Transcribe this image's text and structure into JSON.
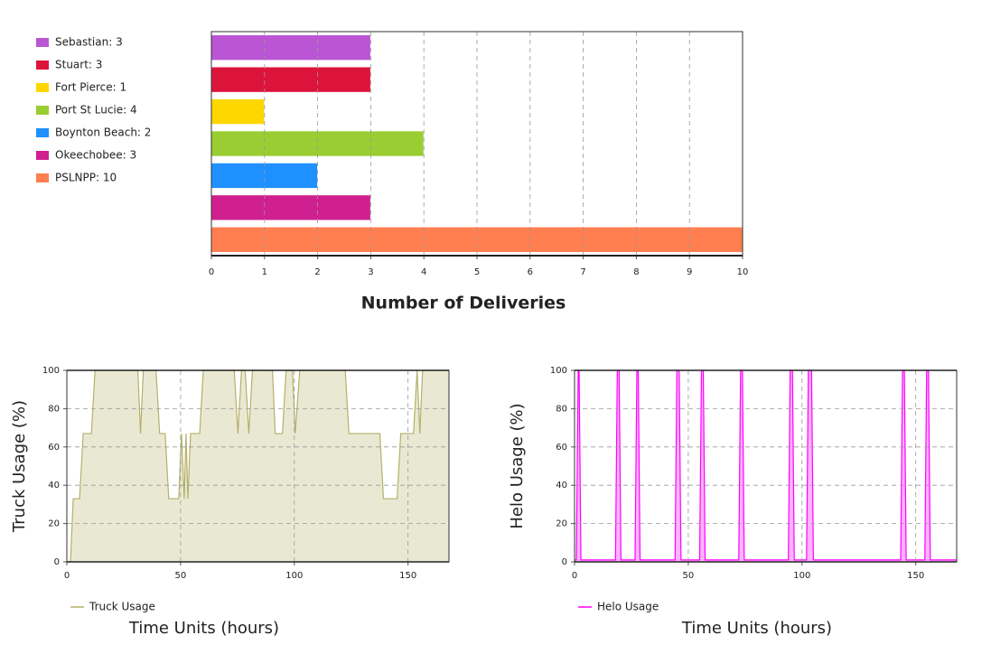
{
  "chart_data": [
    {
      "type": "bar",
      "orientation": "horizontal",
      "categories": [
        "Sebastian: 3",
        "Stuart: 3",
        "Fort Pierce: 1",
        "Port St Lucie: 4",
        "Boynton Beach: 2",
        "Okeechobee: 3",
        "PSLNPP: 10"
      ],
      "values": [
        3,
        3,
        1,
        4,
        2,
        3,
        10
      ],
      "colors": [
        "#ba55d3",
        "#dc143c",
        "#ffd700",
        "#9acd32",
        "#1e90ff",
        "#d0208f",
        "#ff7f50"
      ],
      "xlim": [
        0,
        10
      ],
      "xticks": [
        0,
        1,
        2,
        3,
        4,
        5,
        6,
        7,
        8,
        9,
        10
      ],
      "xlabel": "Number of Deliveries",
      "grid": true
    },
    {
      "type": "area",
      "x": [
        0,
        1.6,
        2.8,
        5.6,
        7.2,
        10.8,
        12.4,
        31.2,
        32.4,
        33.6,
        39.2,
        40.8,
        43.2,
        44.8,
        49.2,
        50.4,
        51.6,
        52.4,
        53.2,
        54.4,
        58.4,
        60,
        73.6,
        75.2,
        76.8,
        78.4,
        80,
        81.6,
        90.4,
        91.6,
        94.8,
        96.4,
        99.2,
        100.4,
        102.4,
        122.4,
        124,
        137.6,
        139.2,
        145.2,
        146.8,
        152.4,
        154,
        155.2,
        156.4,
        168
      ],
      "series": [
        {
          "name": "Truck Usage",
          "color": "#b5b06a",
          "fill": "#e9e9d3",
          "values": [
            0,
            0,
            33,
            33,
            67,
            67,
            100,
            100,
            67,
            100,
            100,
            67,
            67,
            33,
            33,
            67,
            33,
            67,
            33,
            67,
            67,
            100,
            100,
            67,
            100,
            100,
            67,
            100,
            100,
            67,
            67,
            100,
            100,
            67,
            100,
            100,
            67,
            67,
            33,
            33,
            67,
            67,
            100,
            67,
            100,
            100
          ]
        }
      ],
      "xlim": [
        0,
        168
      ],
      "xticks": [
        0,
        50,
        100,
        150
      ],
      "ylim": [
        0,
        100
      ],
      "yticks": [
        0,
        20,
        40,
        60,
        80,
        100
      ],
      "xlabel": "Time Units (hours)",
      "ylabel": "Truck Usage (%)",
      "grid": true
    },
    {
      "type": "area",
      "x": [
        0,
        0.8,
        1.6,
        2,
        2.8,
        18,
        18.8,
        19.6,
        20.4,
        26.6,
        27.4,
        28,
        28.8,
        44.2,
        45,
        46,
        46.8,
        55,
        55.8,
        56.6,
        57.4,
        72.2,
        73,
        73.8,
        74.6,
        94,
        94.8,
        95.8,
        96.6,
        102,
        102.8,
        104.2,
        105,
        143.4,
        144.2,
        145,
        145.8,
        154,
        154.8,
        155.6,
        156.4,
        168
      ],
      "series": [
        {
          "name": "Helo Usage",
          "color": "#ff00ff",
          "fill": "#ffb4ff",
          "values": [
            1,
            1,
            100,
            100,
            1,
            1,
            100,
            100,
            1,
            1,
            100,
            100,
            1,
            1,
            100,
            100,
            1,
            1,
            100,
            100,
            1,
            1,
            100,
            100,
            1,
            1,
            100,
            100,
            1,
            1,
            100,
            100,
            1,
            1,
            100,
            100,
            1,
            1,
            100,
            100,
            1,
            1
          ]
        }
      ],
      "xlim": [
        0,
        168
      ],
      "xticks": [
        0,
        50,
        100,
        150
      ],
      "ylim": [
        0,
        100
      ],
      "yticks": [
        0,
        20,
        40,
        60,
        80,
        100
      ],
      "xlabel": "Time Units (hours)",
      "ylabel": "Helo Usage (%)",
      "grid": true
    }
  ]
}
